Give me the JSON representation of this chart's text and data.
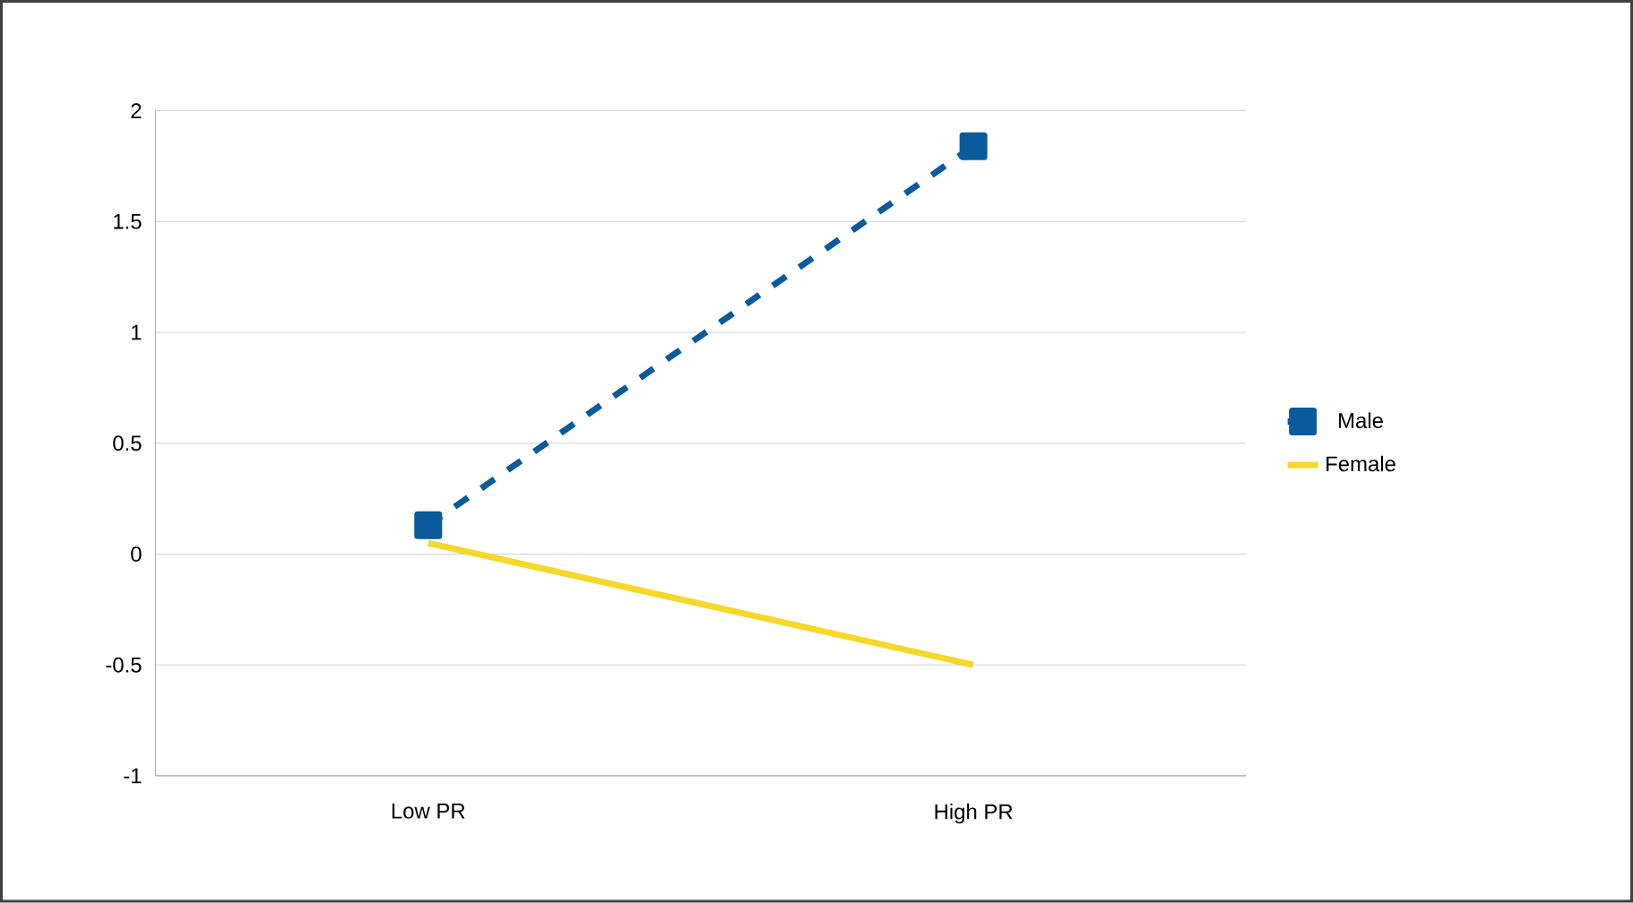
{
  "chart_data": {
    "type": "line",
    "categories": [
      "Low PR",
      "High PR"
    ],
    "series": [
      {
        "name": "Male",
        "color": "#0a5a9c",
        "values": [
          0.13,
          1.84
        ],
        "marker": "square",
        "line_style": "dashed"
      },
      {
        "name": "Female",
        "color": "#f5d82a",
        "values": [
          0.05,
          -0.5
        ],
        "marker": "none",
        "line_style": "solid"
      }
    ],
    "ylim": [
      -1,
      2
    ],
    "yticks": [
      -1,
      -0.5,
      0,
      0.5,
      1,
      1.5,
      2
    ],
    "grid": "y",
    "legend": "right"
  }
}
